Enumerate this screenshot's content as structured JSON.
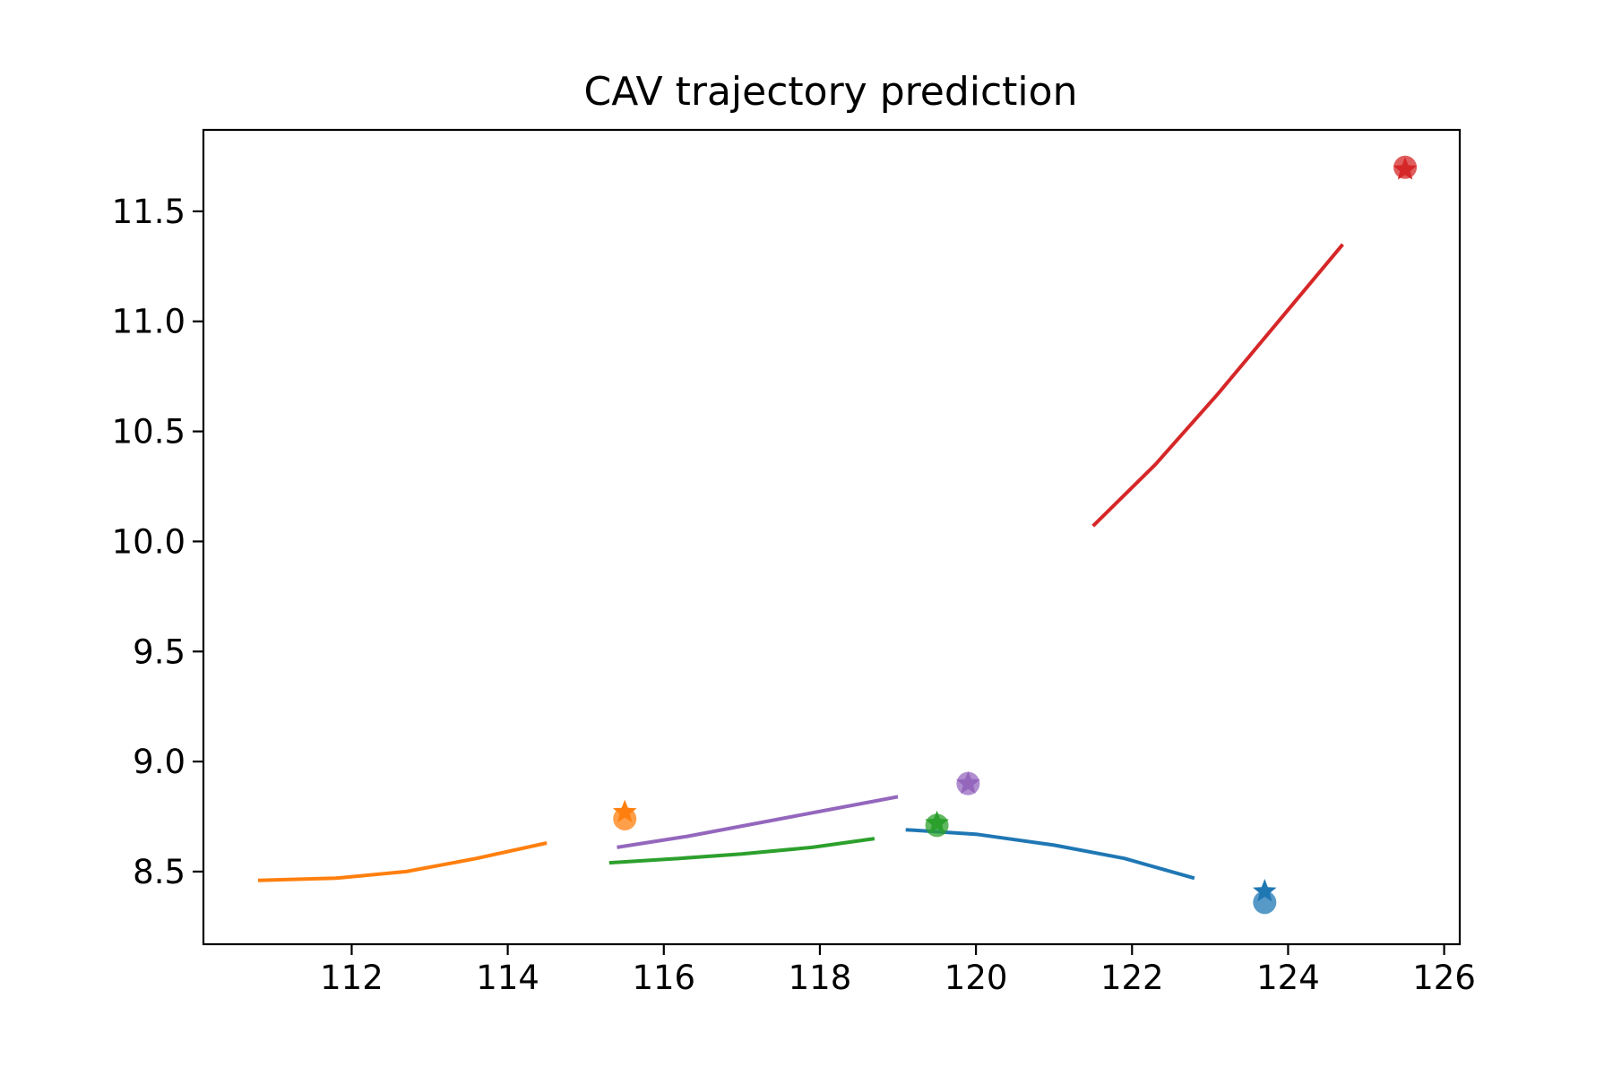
{
  "chart_data": {
    "type": "line",
    "title": "CAV trajectory prediction",
    "xlabel": "",
    "ylabel": "",
    "xlim": [
      110.1,
      126.2
    ],
    "ylim": [
      8.17,
      11.87
    ],
    "xticks": [
      112,
      114,
      116,
      118,
      120,
      122,
      124,
      126
    ],
    "yticks": [
      8.5,
      9.0,
      9.5,
      10.0,
      10.5,
      11.0,
      11.5
    ],
    "xtick_labels": [
      "112",
      "114",
      "116",
      "118",
      "120",
      "122",
      "124",
      "126"
    ],
    "ytick_labels": [
      "8.5",
      "9.0",
      "9.5",
      "10.0",
      "10.5",
      "11.0",
      "11.5"
    ],
    "grid": false,
    "legend": "none",
    "series": [
      {
        "color": "#1f77b4",
        "line": [
          [
            119.1,
            8.69
          ],
          [
            120.0,
            8.67
          ],
          [
            121.0,
            8.62
          ],
          [
            121.9,
            8.56
          ],
          [
            122.8,
            8.47
          ]
        ],
        "circle": [
          123.7,
          8.36
        ],
        "star": [
          123.7,
          8.41
        ]
      },
      {
        "color": "#ff7f0e",
        "line": [
          [
            110.8,
            8.46
          ],
          [
            111.8,
            8.47
          ],
          [
            112.7,
            8.5
          ],
          [
            113.6,
            8.56
          ],
          [
            114.5,
            8.63
          ]
        ],
        "circle": [
          115.5,
          8.74
        ],
        "star": [
          115.5,
          8.77
        ]
      },
      {
        "color": "#2ca02c",
        "line": [
          [
            115.3,
            8.54
          ],
          [
            116.2,
            8.56
          ],
          [
            117.0,
            8.58
          ],
          [
            117.9,
            8.61
          ],
          [
            118.7,
            8.65
          ]
        ],
        "circle": [
          119.5,
          8.71
        ],
        "star": [
          119.5,
          8.72
        ]
      },
      {
        "color": "#d62728",
        "line": [
          [
            121.5,
            10.07
          ],
          [
            122.3,
            10.35
          ],
          [
            123.1,
            10.67
          ],
          [
            123.9,
            11.01
          ],
          [
            124.7,
            11.35
          ]
        ],
        "circle": [
          125.5,
          11.7
        ],
        "star": [
          125.5,
          11.69
        ]
      },
      {
        "color": "#9467bd",
        "line": [
          [
            115.4,
            8.61
          ],
          [
            116.3,
            8.66
          ],
          [
            117.2,
            8.72
          ],
          [
            118.1,
            8.78
          ],
          [
            119.0,
            8.84
          ]
        ],
        "circle": [
          119.9,
          8.9
        ],
        "star": [
          119.9,
          8.9
        ]
      }
    ]
  }
}
